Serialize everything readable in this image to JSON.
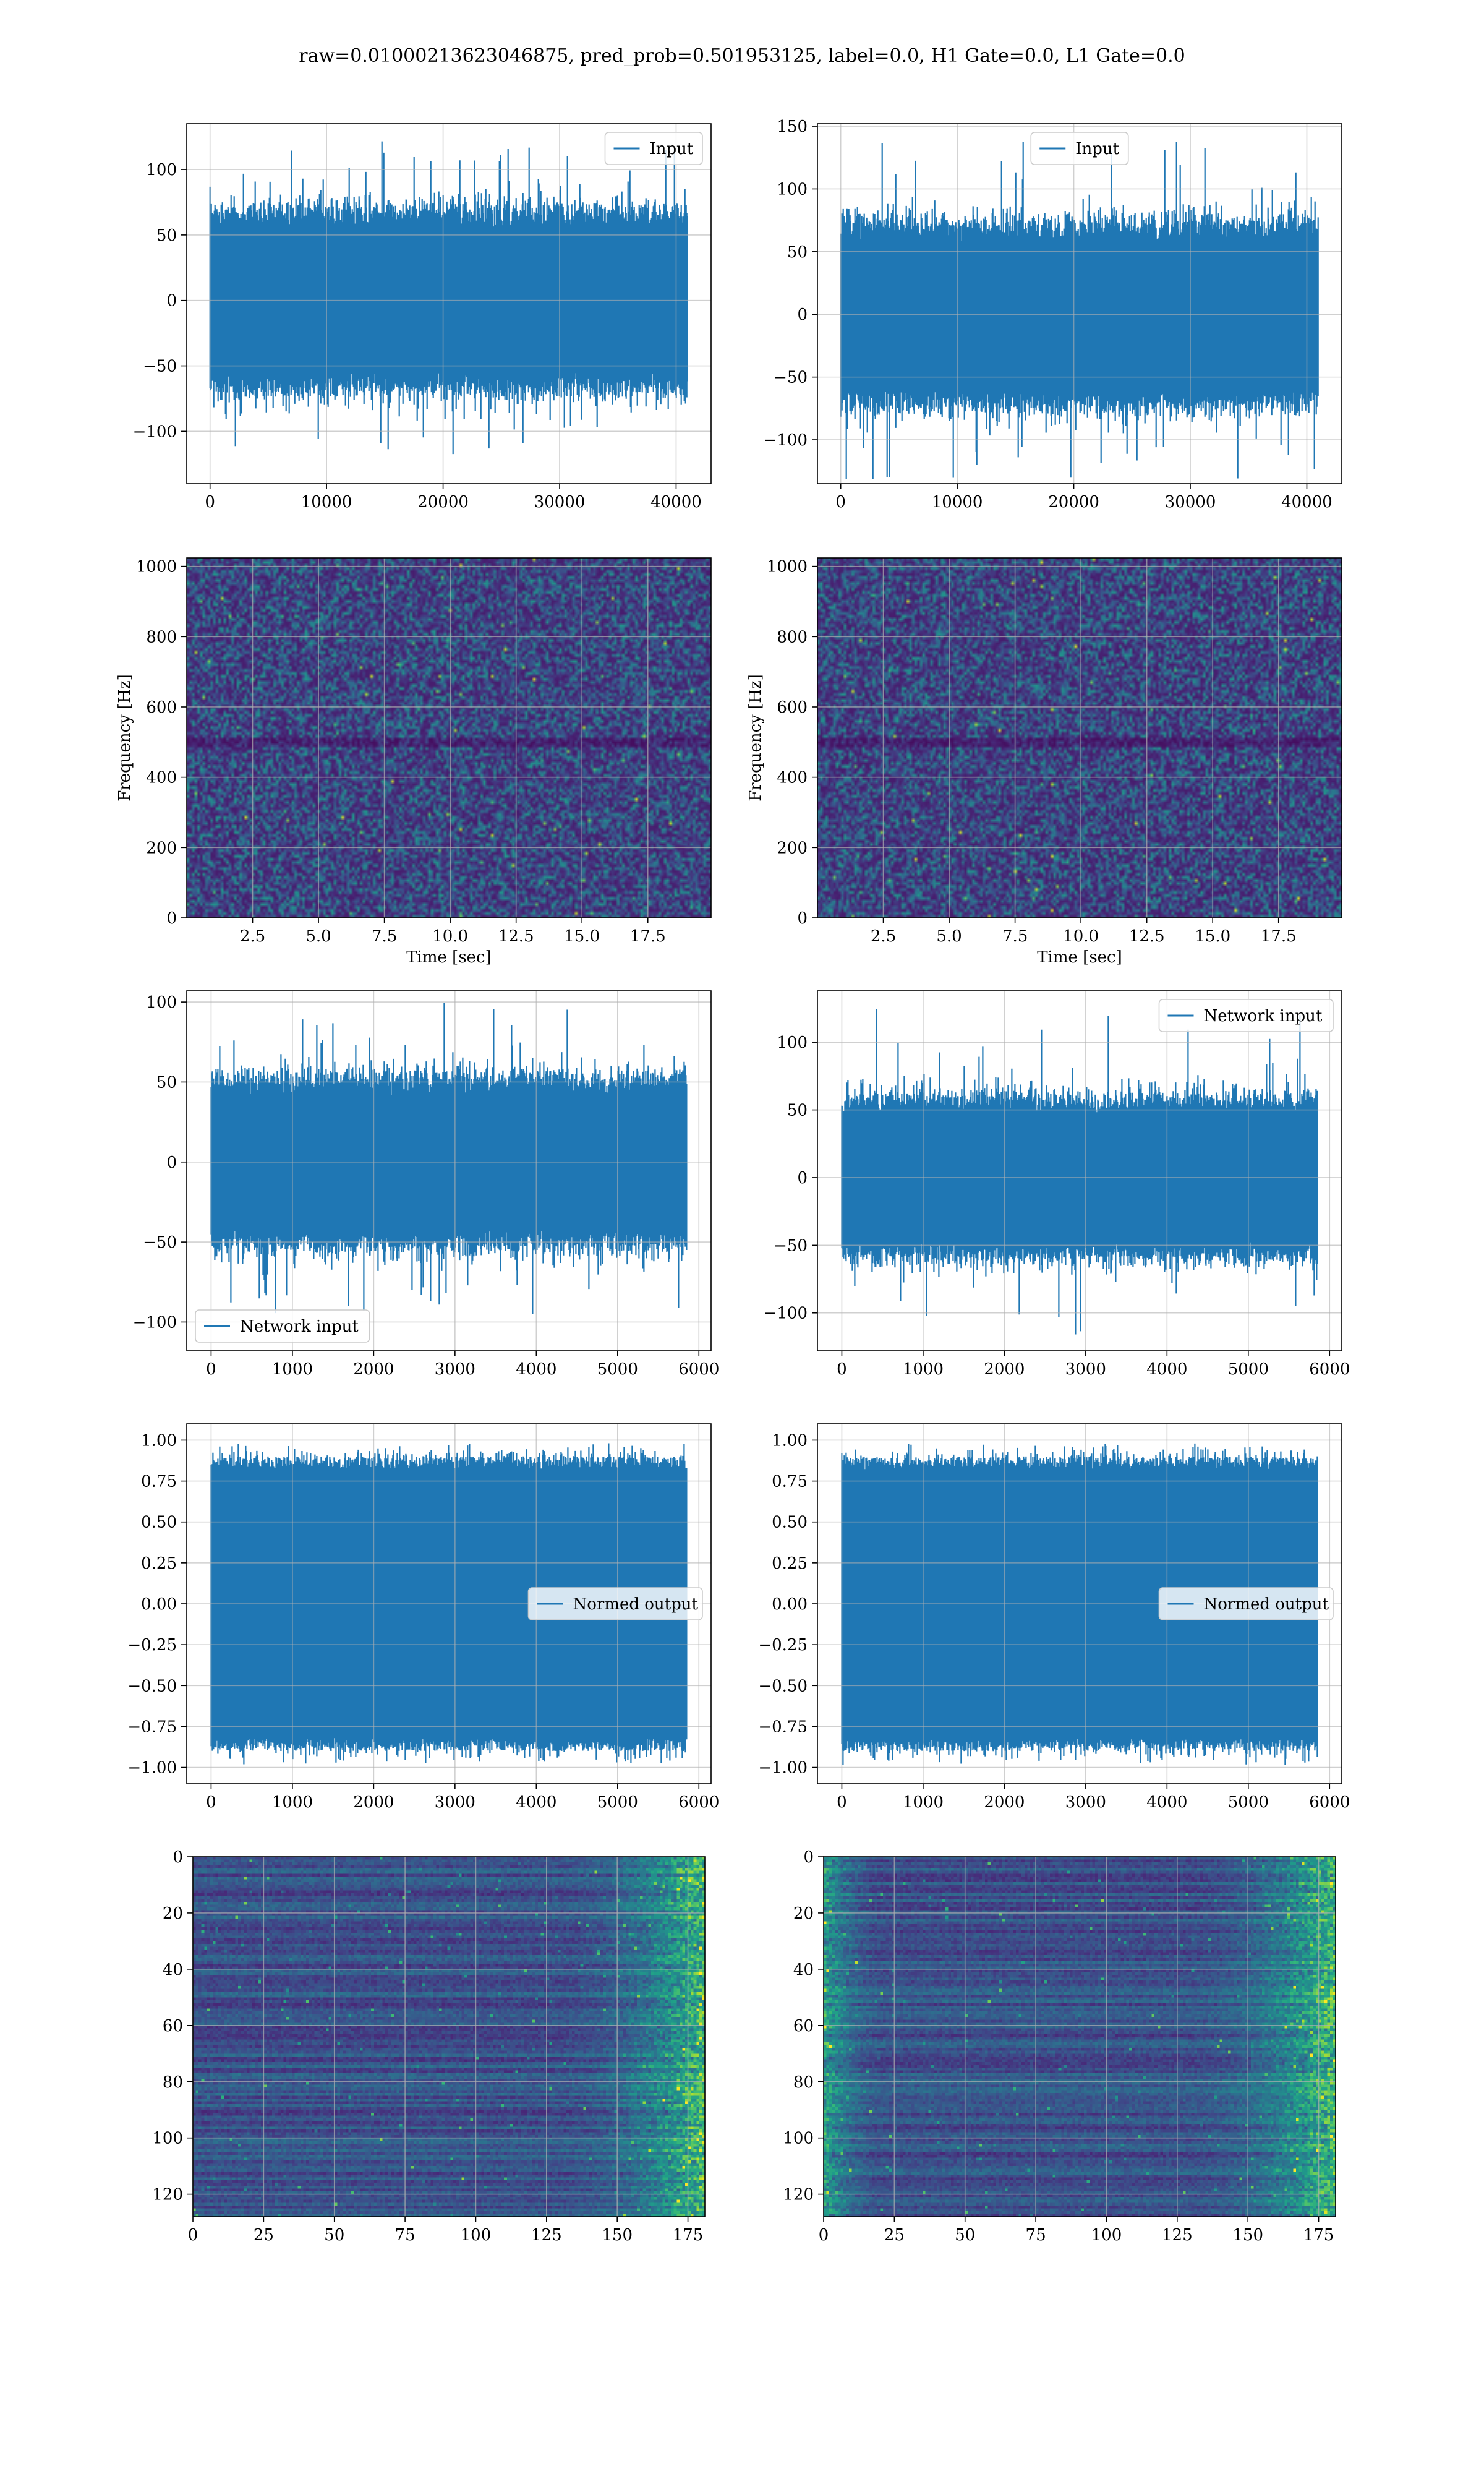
{
  "figure": {
    "title": "raw=0.01000213623046875, pred_prob=0.501953125, label=0.0, H1 Gate=0.0, L1 Gate=0.0",
    "signal_color": "#1f77b4"
  },
  "chart_data": [
    {
      "type": "line",
      "panel": "row1-left",
      "series": [
        {
          "name": "Input",
          "amplitude_typical": 68,
          "amplitude_peak": 123
        }
      ],
      "xlim": [
        -2000,
        43000
      ],
      "ylim": [
        -140,
        135
      ],
      "xticks": [
        0,
        10000,
        20000,
        30000,
        40000
      ],
      "xtick_labels": [
        "0",
        "10000",
        "20000",
        "30000",
        "40000"
      ],
      "yticks": [
        -100,
        -50,
        0,
        50,
        100
      ],
      "ytick_labels": [
        "−100",
        "−50",
        "0",
        "50",
        "100"
      ],
      "x_data_range": [
        0,
        40960
      ],
      "legend": "upper right",
      "grid": true
    },
    {
      "type": "line",
      "panel": "row1-right",
      "series": [
        {
          "name": "Input",
          "amplitude_typical": 72,
          "amplitude_peak": 140
        }
      ],
      "xlim": [
        -2000,
        43000
      ],
      "ylim": [
        -135,
        152
      ],
      "xticks": [
        0,
        10000,
        20000,
        30000,
        40000
      ],
      "xtick_labels": [
        "0",
        "10000",
        "20000",
        "30000",
        "40000"
      ],
      "yticks": [
        -100,
        -50,
        0,
        50,
        100,
        150
      ],
      "ytick_labels": [
        "−100",
        "−50",
        "0",
        "50",
        "100",
        "150"
      ],
      "x_data_range": [
        0,
        40960
      ],
      "legend": "upper center",
      "grid": true
    },
    {
      "type": "heatmap",
      "panel": "row2-left",
      "xlabel": "Time [sec]",
      "ylabel": "Frequency [Hz]",
      "xlim": [
        0,
        19.9
      ],
      "ylim": [
        0,
        1024
      ],
      "xticks": [
        2.5,
        5.0,
        7.5,
        10.0,
        12.5,
        15.0,
        17.5
      ],
      "xtick_labels": [
        "2.5",
        "5.0",
        "7.5",
        "10.0",
        "12.5",
        "15.0",
        "17.5"
      ],
      "yticks": [
        0,
        200,
        400,
        600,
        800,
        1000
      ],
      "ytick_labels": [
        "0",
        "200",
        "400",
        "600",
        "800",
        "1000"
      ],
      "colormap": "viridis",
      "grid": true
    },
    {
      "type": "heatmap",
      "panel": "row2-right",
      "xlabel": "Time [sec]",
      "ylabel": "Frequency [Hz]",
      "xlim": [
        0,
        19.9
      ],
      "ylim": [
        0,
        1024
      ],
      "xticks": [
        2.5,
        5.0,
        7.5,
        10.0,
        12.5,
        15.0,
        17.5
      ],
      "xtick_labels": [
        "2.5",
        "5.0",
        "7.5",
        "10.0",
        "12.5",
        "15.0",
        "17.5"
      ],
      "yticks": [
        0,
        200,
        400,
        600,
        800,
        1000
      ],
      "ytick_labels": [
        "0",
        "200",
        "400",
        "600",
        "800",
        "1000"
      ],
      "colormap": "viridis",
      "grid": true
    },
    {
      "type": "line",
      "panel": "row3-left",
      "series": [
        {
          "name": "Network input",
          "amplitude_typical": 52,
          "amplitude_peak": 100
        }
      ],
      "xlim": [
        -300,
        6150
      ],
      "ylim": [
        -118,
        107
      ],
      "xticks": [
        0,
        1000,
        2000,
        3000,
        4000,
        5000,
        6000
      ],
      "xtick_labels": [
        "0",
        "1000",
        "2000",
        "3000",
        "4000",
        "5000",
        "6000"
      ],
      "yticks": [
        -100,
        -50,
        0,
        50,
        100
      ],
      "ytick_labels": [
        "−100",
        "−50",
        "0",
        "50",
        "100"
      ],
      "x_data_range": [
        0,
        5850
      ],
      "legend": "lower left",
      "grid": true
    },
    {
      "type": "line",
      "panel": "row3-right",
      "series": [
        {
          "name": "Network input",
          "amplitude_typical": 58,
          "amplitude_peak": 125
        }
      ],
      "xlim": [
        -300,
        6150
      ],
      "ylim": [
        -128,
        138
      ],
      "xticks": [
        0,
        1000,
        2000,
        3000,
        4000,
        5000,
        6000
      ],
      "xtick_labels": [
        "0",
        "1000",
        "2000",
        "3000",
        "4000",
        "5000",
        "6000"
      ],
      "yticks": [
        -100,
        -50,
        0,
        50,
        100
      ],
      "ytick_labels": [
        "−100",
        "−50",
        "0",
        "50",
        "100"
      ],
      "x_data_range": [
        0,
        5850
      ],
      "legend": "upper right",
      "grid": true
    },
    {
      "type": "line",
      "panel": "row4-left",
      "series": [
        {
          "name": "Normed output",
          "amplitude_typical": 0.93,
          "amplitude_peak": 0.99
        }
      ],
      "xlim": [
        -300,
        6150
      ],
      "ylim": [
        -1.1,
        1.1
      ],
      "xticks": [
        0,
        1000,
        2000,
        3000,
        4000,
        5000,
        6000
      ],
      "xtick_labels": [
        "0",
        "1000",
        "2000",
        "3000",
        "4000",
        "5000",
        "6000"
      ],
      "yticks": [
        -1.0,
        -0.75,
        -0.5,
        -0.25,
        0.0,
        0.25,
        0.5,
        0.75,
        1.0
      ],
      "ytick_labels": [
        "−1.00",
        "−0.75",
        "−0.50",
        "−0.25",
        "0.00",
        "0.25",
        "0.50",
        "0.75",
        "1.00"
      ],
      "x_data_range": [
        0,
        5850
      ],
      "legend": "center right",
      "grid": true
    },
    {
      "type": "line",
      "panel": "row4-right",
      "series": [
        {
          "name": "Normed output",
          "amplitude_typical": 0.93,
          "amplitude_peak": 0.99
        }
      ],
      "xlim": [
        -300,
        6150
      ],
      "ylim": [
        -1.1,
        1.1
      ],
      "xticks": [
        0,
        1000,
        2000,
        3000,
        4000,
        5000,
        6000
      ],
      "xtick_labels": [
        "0",
        "1000",
        "2000",
        "3000",
        "4000",
        "5000",
        "6000"
      ],
      "yticks": [
        -1.0,
        -0.75,
        -0.5,
        -0.25,
        0.0,
        0.25,
        0.5,
        0.75,
        1.0
      ],
      "ytick_labels": [
        "−1.00",
        "−0.75",
        "−0.50",
        "−0.25",
        "0.00",
        "0.25",
        "0.50",
        "0.75",
        "1.00"
      ],
      "x_data_range": [
        0,
        5850
      ],
      "legend": "center right",
      "grid": true
    },
    {
      "type": "heatmap",
      "panel": "row5-left",
      "xlim": [
        0,
        181
      ],
      "ylim": [
        128,
        0
      ],
      "rows": 128,
      "cols": 181,
      "xticks": [
        0,
        25,
        50,
        75,
        100,
        125,
        150,
        175
      ],
      "xtick_labels": [
        "0",
        "25",
        "50",
        "75",
        "100",
        "125",
        "150",
        "175"
      ],
      "yticks": [
        0,
        20,
        40,
        60,
        80,
        100,
        120
      ],
      "ytick_labels": [
        "0",
        "20",
        "40",
        "60",
        "80",
        "100",
        "120"
      ],
      "colormap": "viridis",
      "bright_side": "right",
      "grid": true
    },
    {
      "type": "heatmap",
      "panel": "row5-right",
      "xlim": [
        0,
        181
      ],
      "ylim": [
        128,
        0
      ],
      "rows": 128,
      "cols": 181,
      "xticks": [
        0,
        25,
        50,
        75,
        100,
        125,
        150,
        175
      ],
      "xtick_labels": [
        "0",
        "25",
        "50",
        "75",
        "100",
        "125",
        "150",
        "175"
      ],
      "yticks": [
        0,
        20,
        40,
        60,
        80,
        100,
        120
      ],
      "ytick_labels": [
        "0",
        "20",
        "40",
        "60",
        "80",
        "100",
        "120"
      ],
      "colormap": "viridis",
      "bright_side": "both",
      "grid": true
    }
  ]
}
